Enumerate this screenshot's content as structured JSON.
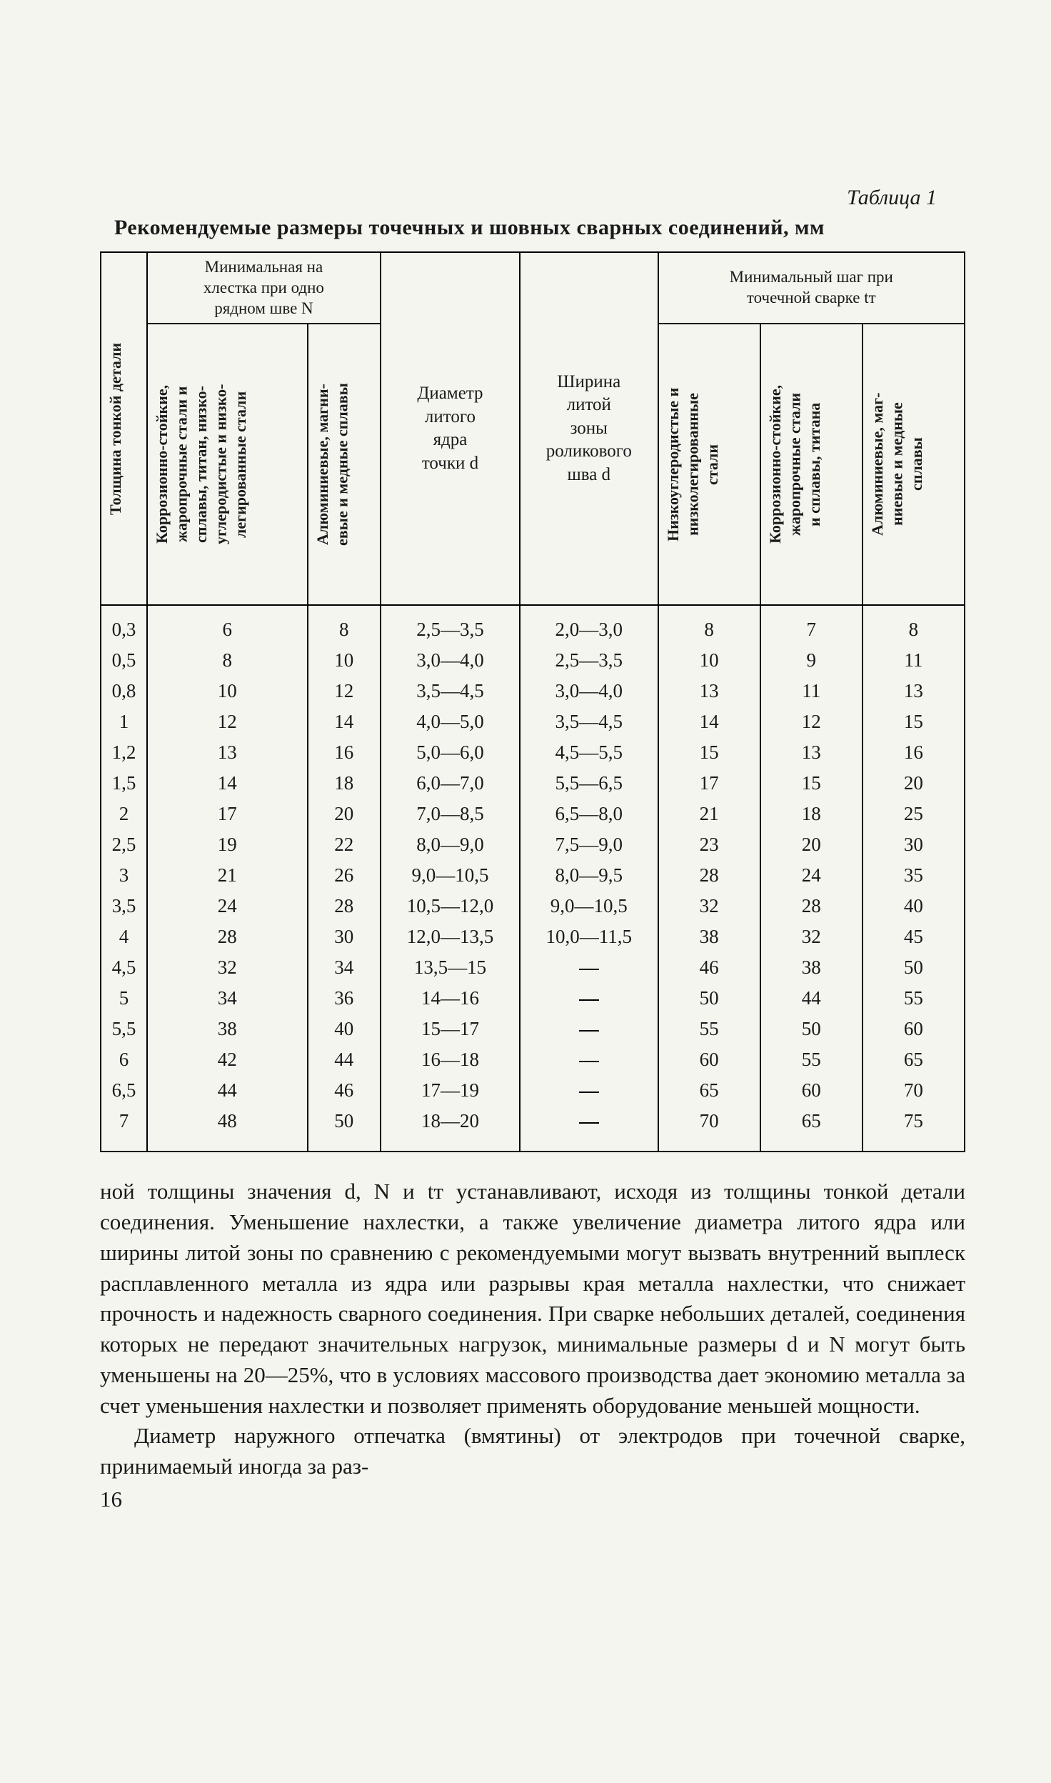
{
  "table_label": "Таблица 1",
  "table_title": "Рекомендуемые размеры точечных и шовных сварных соединений, мм",
  "headers": {
    "col1": "Толщина тонкой детали",
    "group2": "Минимальная на|хлестка при одно|рядном шве N",
    "col2a": "Коррозионно-стойкие,|жаропрочные стали и|сплавы, титан, низко-|углеродистые и низко-|легированные стали",
    "col2b": "Алюминиевые, магни-|евые и медные сплавы",
    "col3": "Диаметр|литого|ядра|точки d",
    "col4": "Ширина|литой|зоны|роликового|шва d",
    "group5": "Минимальный шаг при|точечной сварке tт",
    "col5a": "Низкоуглеродистые и|низколегированные|стали",
    "col5b": "Коррозионно-стойкие,|жаропрочные стали|и сплавы, титана",
    "col5c": "Алюминиевые, маг-|ниевые и медные|сплавы"
  },
  "columns": [
    "c1",
    "c2a",
    "c2b",
    "c3",
    "c4",
    "c5a",
    "c5b",
    "c5c"
  ],
  "rows": [
    {
      "c1": "0,3",
      "c2a": "6",
      "c2b": "8",
      "c3": "2,5—3,5",
      "c4": "2,0—3,0",
      "c5a": "8",
      "c5b": "7",
      "c5c": "8"
    },
    {
      "c1": "0,5",
      "c2a": "8",
      "c2b": "10",
      "c3": "3,0—4,0",
      "c4": "2,5—3,5",
      "c5a": "10",
      "c5b": "9",
      "c5c": "11"
    },
    {
      "c1": "0,8",
      "c2a": "10",
      "c2b": "12",
      "c3": "3,5—4,5",
      "c4": "3,0—4,0",
      "c5a": "13",
      "c5b": "11",
      "c5c": "13"
    },
    {
      "c1": "1",
      "c2a": "12",
      "c2b": "14",
      "c3": "4,0—5,0",
      "c4": "3,5—4,5",
      "c5a": "14",
      "c5b": "12",
      "c5c": "15"
    },
    {
      "c1": "1,2",
      "c2a": "13",
      "c2b": "16",
      "c3": "5,0—6,0",
      "c4": "4,5—5,5",
      "c5a": "15",
      "c5b": "13",
      "c5c": "16"
    },
    {
      "c1": "1,5",
      "c2a": "14",
      "c2b": "18",
      "c3": "6,0—7,0",
      "c4": "5,5—6,5",
      "c5a": "17",
      "c5b": "15",
      "c5c": "20"
    },
    {
      "c1": "2",
      "c2a": "17",
      "c2b": "20",
      "c3": "7,0—8,5",
      "c4": "6,5—8,0",
      "c5a": "21",
      "c5b": "18",
      "c5c": "25"
    },
    {
      "c1": "2,5",
      "c2a": "19",
      "c2b": "22",
      "c3": "8,0—9,0",
      "c4": "7,5—9,0",
      "c5a": "23",
      "c5b": "20",
      "c5c": "30"
    },
    {
      "c1": "3",
      "c2a": "21",
      "c2b": "26",
      "c3": "9,0—10,5",
      "c4": "8,0—9,5",
      "c5a": "28",
      "c5b": "24",
      "c5c": "35"
    },
    {
      "c1": "3,5",
      "c2a": "24",
      "c2b": "28",
      "c3": "10,5—12,0",
      "c4": "9,0—10,5",
      "c5a": "32",
      "c5b": "28",
      "c5c": "40"
    },
    {
      "c1": "4",
      "c2a": "28",
      "c2b": "30",
      "c3": "12,0—13,5",
      "c4": "10,0—11,5",
      "c5a": "38",
      "c5b": "32",
      "c5c": "45"
    },
    {
      "c1": "4,5",
      "c2a": "32",
      "c2b": "34",
      "c3": "13,5—15",
      "c4": "—",
      "c5a": "46",
      "c5b": "38",
      "c5c": "50"
    },
    {
      "c1": "5",
      "c2a": "34",
      "c2b": "36",
      "c3": "14—16",
      "c4": "—",
      "c5a": "50",
      "c5b": "44",
      "c5c": "55"
    },
    {
      "c1": "5,5",
      "c2a": "38",
      "c2b": "40",
      "c3": "15—17",
      "c4": "—",
      "c5a": "55",
      "c5b": "50",
      "c5c": "60"
    },
    {
      "c1": "6",
      "c2a": "42",
      "c2b": "44",
      "c3": "16—18",
      "c4": "—",
      "c5a": "60",
      "c5b": "55",
      "c5c": "65"
    },
    {
      "c1": "6,5",
      "c2a": "44",
      "c2b": "46",
      "c3": "17—19",
      "c4": "—",
      "c5a": "65",
      "c5b": "60",
      "c5c": "70"
    },
    {
      "c1": "7",
      "c2a": "48",
      "c2b": "50",
      "c3": "18—20",
      "c4": "—",
      "c5a": "70",
      "c5b": "65",
      "c5c": "75"
    }
  ],
  "body": {
    "p1": "ной толщины значения d, N и tт устанавливают, исходя из толщины тонкой детали соединения. Уменьшение нахлестки, а также увеличение диаметра литого ядра или ширины литой зоны по сравнению с рекомендуемыми могут вызвать внутренний выплеск расплавленного металла из ядра или разрывы края металла нахлестки, что снижает прочность и надежность сварного соединения. При сварке небольших деталей, соединения которых не передают значительных нагрузок, минимальные размеры d и N могут быть уменьшены на 20—25%, что в условиях массового производства дает экономию металла за счет уменьшения нахлестки и позволяет применять оборудование меньшей мощности.",
    "p2": "Диаметр наружного отпечатка (вмятины) от электродов при точечной сварке, принимаемый иногда за раз-"
  },
  "page_number": "16"
}
